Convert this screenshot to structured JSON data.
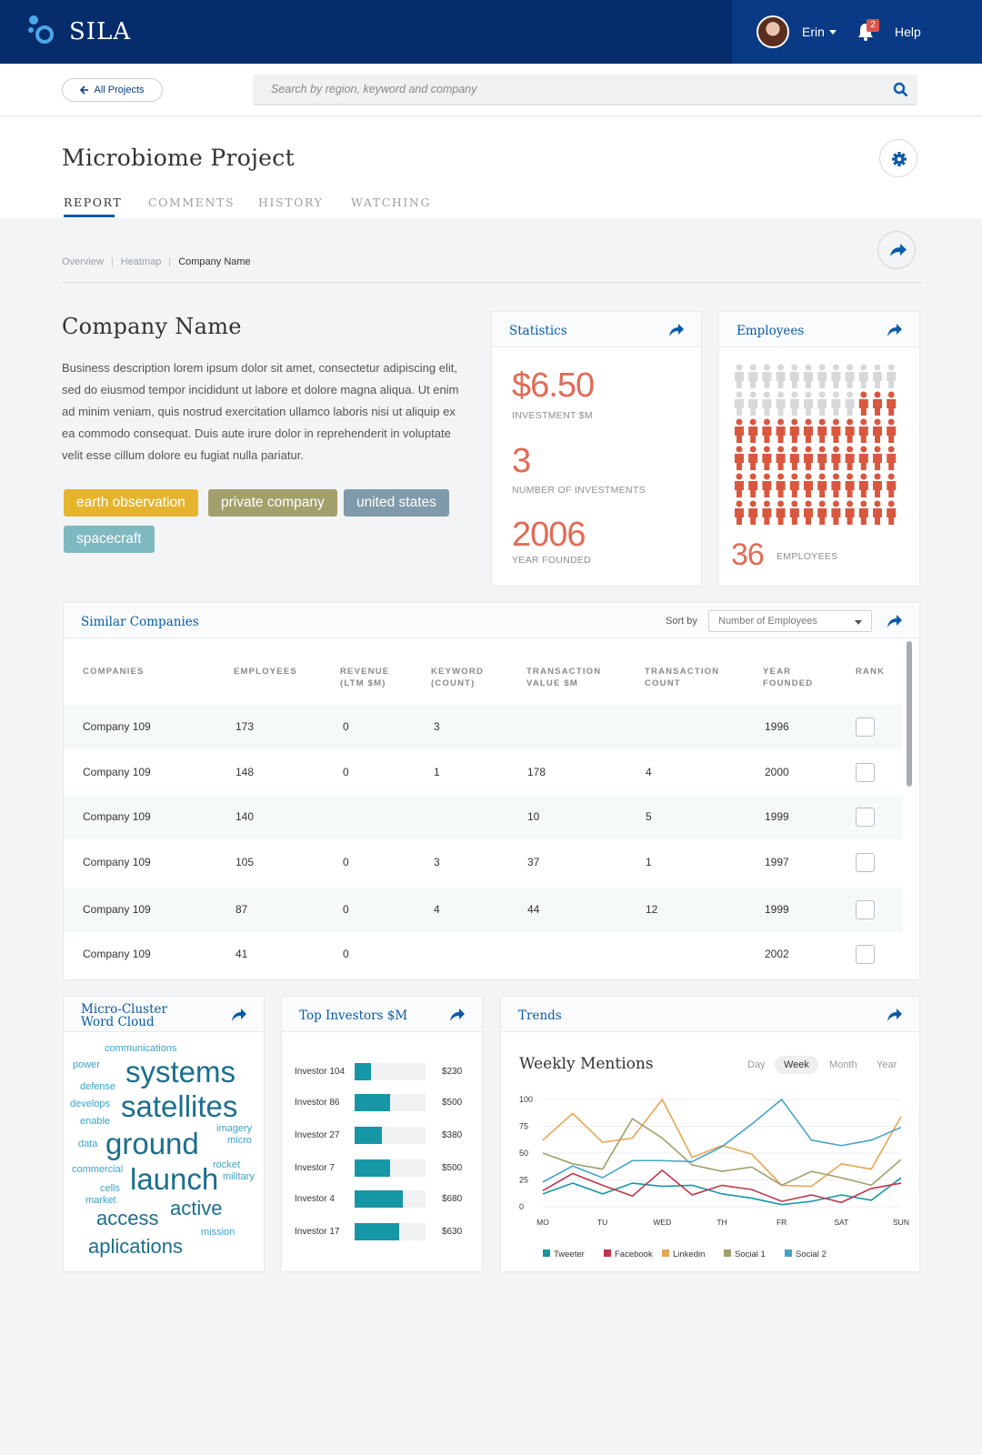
{
  "app": {
    "name": "SILA"
  },
  "user": {
    "name": "Erin",
    "notifications": "2",
    "help": "Help"
  },
  "nav": {
    "back_label": "All Projects"
  },
  "search": {
    "placeholder": "Search by region, keyword and company"
  },
  "project": {
    "title": "Microbiome Project",
    "tabs": [
      "REPORT",
      "COMMENTS",
      "HISTORY",
      "WATCHING"
    ],
    "active_tab": "REPORT"
  },
  "breadcrumb": [
    "Overview",
    "Heatmap",
    "Company Name"
  ],
  "company": {
    "name": "Company Name",
    "description": "Business description lorem ipsum dolor sit amet, consectetur adipiscing elit, sed do eiusmod tempor incididunt ut labore et dolore magna aliqua. Ut enim ad minim veniam, quis nostrud exercitation ullamco laboris nisi ut aliquip ex ea commodo consequat. Duis aute irure dolor in reprehenderit in voluptate velit esse cillum dolore eu fugiat nulla pariatur.",
    "tags": [
      {
        "label": "earth observation",
        "color": "#e5b42c"
      },
      {
        "label": "private company",
        "color": "#a3a16b"
      },
      {
        "label": "united states",
        "color": "#7f9aaa"
      },
      {
        "label": "spacecraft",
        "color": "#7fb9c0"
      }
    ]
  },
  "statistics": {
    "title": "Statistics",
    "items": [
      {
        "value": "$6.50",
        "label": "INVESTMENT $M"
      },
      {
        "value": "3",
        "label": "NUMBER OF INVESTMENTS"
      },
      {
        "value": "2006",
        "label": "YEAR FOUNDED"
      }
    ]
  },
  "employees": {
    "title": "Employees",
    "value": "36",
    "label": "EMPLOYEES",
    "grid_total": 72,
    "highlighted": 51,
    "colors": {
      "off": "#d6d8da",
      "on": "#d9573f"
    }
  },
  "similar": {
    "title": "Similar Companies",
    "sort_label": "Sort by",
    "sort_value": "Number of Employees",
    "columns": [
      "COMPANIES",
      "EMPLOYEES",
      "REVENUE\n(LTM $M)",
      "KEYWORD\n(COUNT)",
      "TRANSACTION\nVALUE $M",
      "TRANSACTION\nCOUNT",
      "YEAR\nFOUNDED",
      "RANK"
    ],
    "rows": [
      [
        "Company 109",
        "173",
        "0",
        "3",
        "",
        "",
        "1996"
      ],
      [
        "Company 109",
        "148",
        "0",
        "1",
        "178",
        "4",
        "2000"
      ],
      [
        "Company 109",
        "140",
        "",
        "",
        "10",
        "5",
        "1999"
      ],
      [
        "Company 109",
        "105",
        "0",
        "3",
        "37",
        "1",
        "1997"
      ],
      [
        "Company 109",
        "87",
        "0",
        "4",
        "44",
        "12",
        "1999"
      ],
      [
        "Company 109",
        "41",
        "0",
        "",
        "",
        "",
        "2002"
      ]
    ]
  },
  "wordcloud": {
    "title_line1": "Micro-Cluster",
    "title_line2": "Word Cloud",
    "words": [
      "communications",
      "power",
      "systems",
      "defense",
      "develops",
      "satellites",
      "enable",
      "imagery",
      "micro",
      "data",
      "ground",
      "rocket",
      "military",
      "commercial",
      "launch",
      "cells",
      "market",
      "active",
      "access",
      "mission",
      "aplications"
    ]
  },
  "investors": {
    "title": "Top Investors $M",
    "items": [
      {
        "name": "Investor 104",
        "value": "$230",
        "amount": 230
      },
      {
        "name": "Investor 86",
        "value": "$500",
        "amount": 500
      },
      {
        "name": "Investor 27",
        "value": "$380",
        "amount": 380
      },
      {
        "name": "Investor 7",
        "value": "$500",
        "amount": 500
      },
      {
        "name": "Investor 4",
        "value": "$680",
        "amount": 680
      },
      {
        "name": "Investor 17",
        "value": "$630",
        "amount": 630
      }
    ],
    "max": 1000
  },
  "trends": {
    "title": "Trends",
    "subtitle": "Weekly Mentions",
    "ranges": [
      "Day",
      "Week",
      "Month",
      "Year"
    ],
    "active_range": "Week"
  },
  "chart_data": {
    "type": "line",
    "title": "Weekly Mentions",
    "categories": [
      "MO",
      "",
      "TU",
      "",
      "WED",
      "",
      "TH",
      "",
      "FR",
      "",
      "SAT",
      "",
      "SUN"
    ],
    "x_labels": [
      "MO",
      "TU",
      "WED",
      "TH",
      "FR",
      "SAT",
      "SUN"
    ],
    "yticks": [
      0,
      25,
      50,
      75,
      100
    ],
    "ylim": [
      0,
      100
    ],
    "grid": true,
    "legend": "bottom",
    "series": [
      {
        "name": "Tweeter",
        "color": "#1597a5",
        "values": [
          12,
          22,
          12,
          22,
          19,
          20,
          12,
          8,
          2,
          5,
          11,
          6,
          27
        ]
      },
      {
        "name": "Facebook",
        "color": "#c2344a",
        "values": [
          15,
          31,
          20,
          10,
          34,
          11,
          20,
          16,
          5,
          11,
          4,
          17,
          22
        ]
      },
      {
        "name": "Linkedin",
        "color": "#e8a552",
        "values": [
          62,
          87,
          60,
          64,
          100,
          46,
          57,
          49,
          20,
          19,
          40,
          35,
          84
        ]
      },
      {
        "name": "Social 1",
        "color": "#a0a06a",
        "values": [
          50,
          40,
          35,
          82,
          64,
          39,
          33,
          37,
          20,
          33,
          27,
          20,
          44
        ]
      },
      {
        "name": "Social 2",
        "color": "#45a4c6",
        "values": [
          23,
          38,
          27,
          43,
          43,
          42,
          56,
          77,
          100,
          62,
          57,
          62,
          74
        ]
      }
    ]
  }
}
